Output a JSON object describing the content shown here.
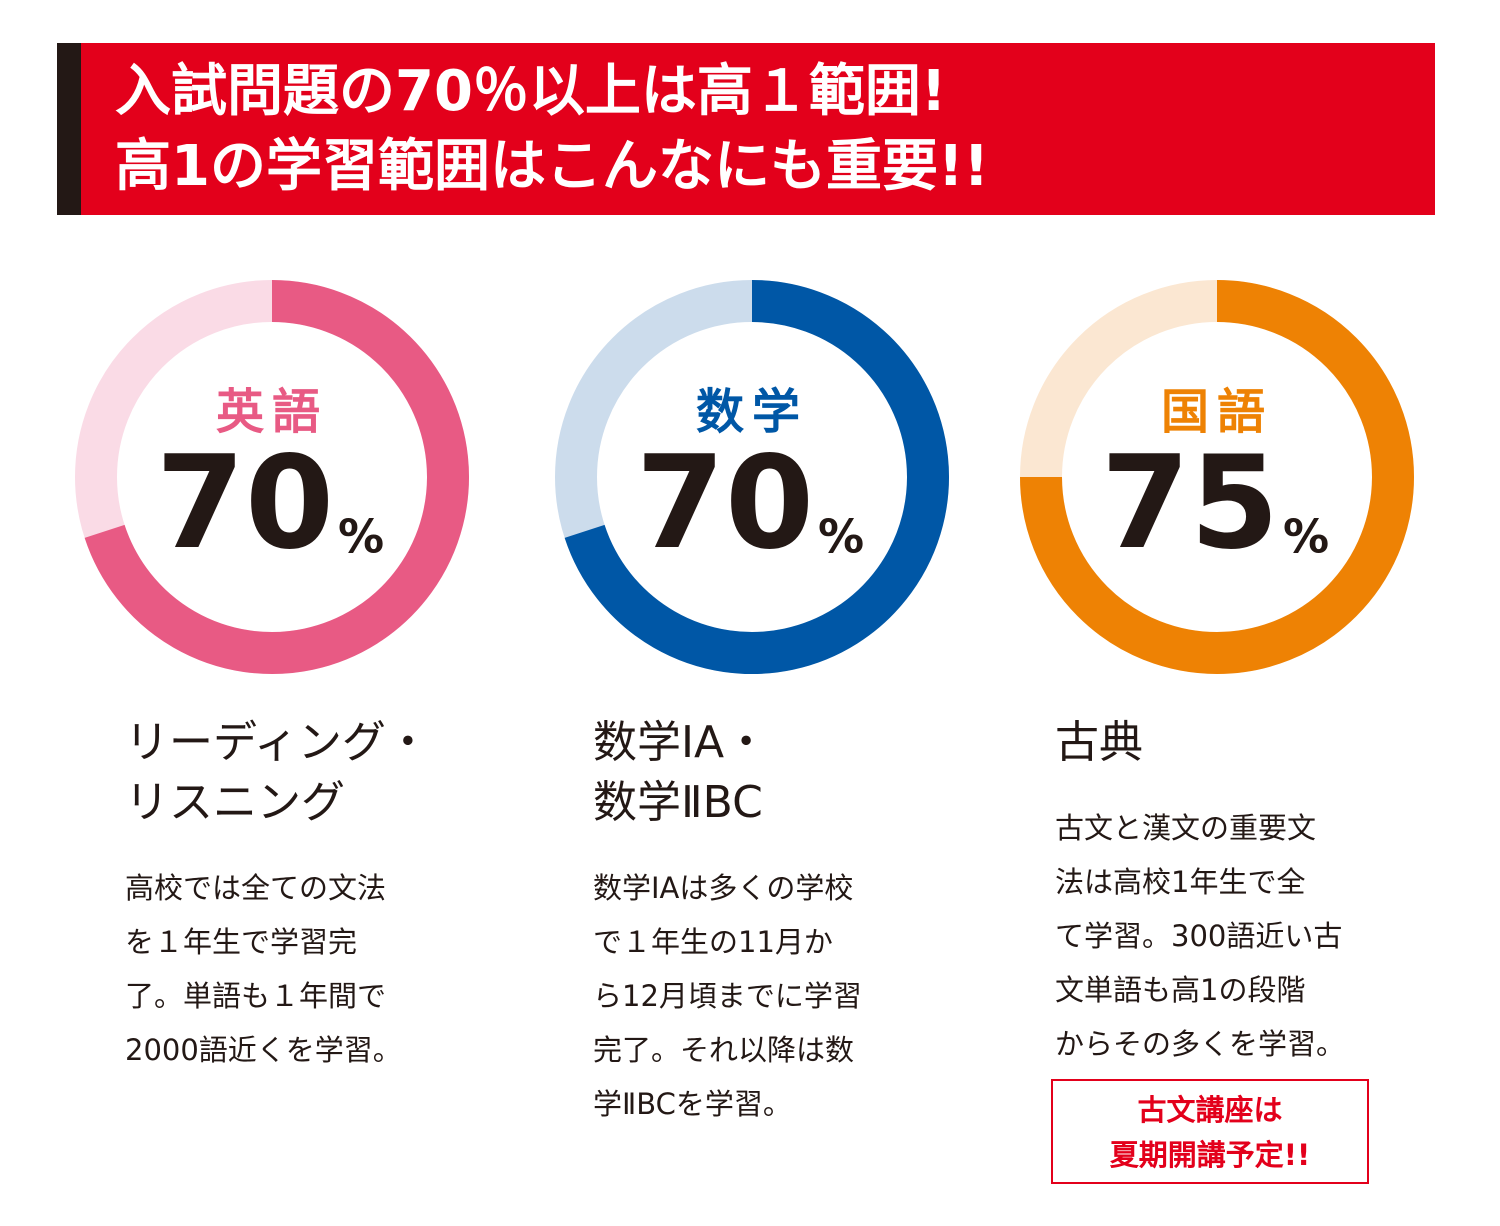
{
  "header": {
    "title_lines": [
      "入試問題の70％以上は高１範囲!",
      "高1の学習範囲はこんなにも重要!!"
    ]
  },
  "chart_data": [
    {
      "type": "donut",
      "title": "英語",
      "values": [
        70
      ],
      "unit": "%",
      "color": "#e85a84",
      "track_color": "#fadbe6",
      "heading_lines": [
        "リーディング・",
        "リスニング"
      ],
      "description_lines": [
        "高校では全ての文法",
        "を１年生で学習完",
        "了。単語も１年間で",
        "2000語近くを学習。"
      ]
    },
    {
      "type": "donut",
      "title": "数学",
      "values": [
        70
      ],
      "unit": "%",
      "color": "#0057a6",
      "track_color": "#ccdcec",
      "heading_lines": [
        "数学ⅠA・",
        "数学ⅡBC"
      ],
      "description_lines": [
        "数学IAは多くの学校",
        "で１年生の11月か",
        "ら12月頃までに学習",
        "完了。それ以降は数",
        "学ⅡBCを学習。"
      ]
    },
    {
      "type": "donut",
      "title": "国語",
      "values": [
        75
      ],
      "unit": "%",
      "color": "#ee8204",
      "track_color": "#fbe7d2",
      "heading_lines": [
        "古典"
      ],
      "description_lines": [
        "古文と漢文の重要文",
        "法は高校1年生で全",
        "て学習。300語近い古",
        "文単語も高1の段階",
        "からその多くを学習。"
      ],
      "note_lines": [
        "古文講座は",
        "夏期開講予定!!"
      ]
    }
  ]
}
